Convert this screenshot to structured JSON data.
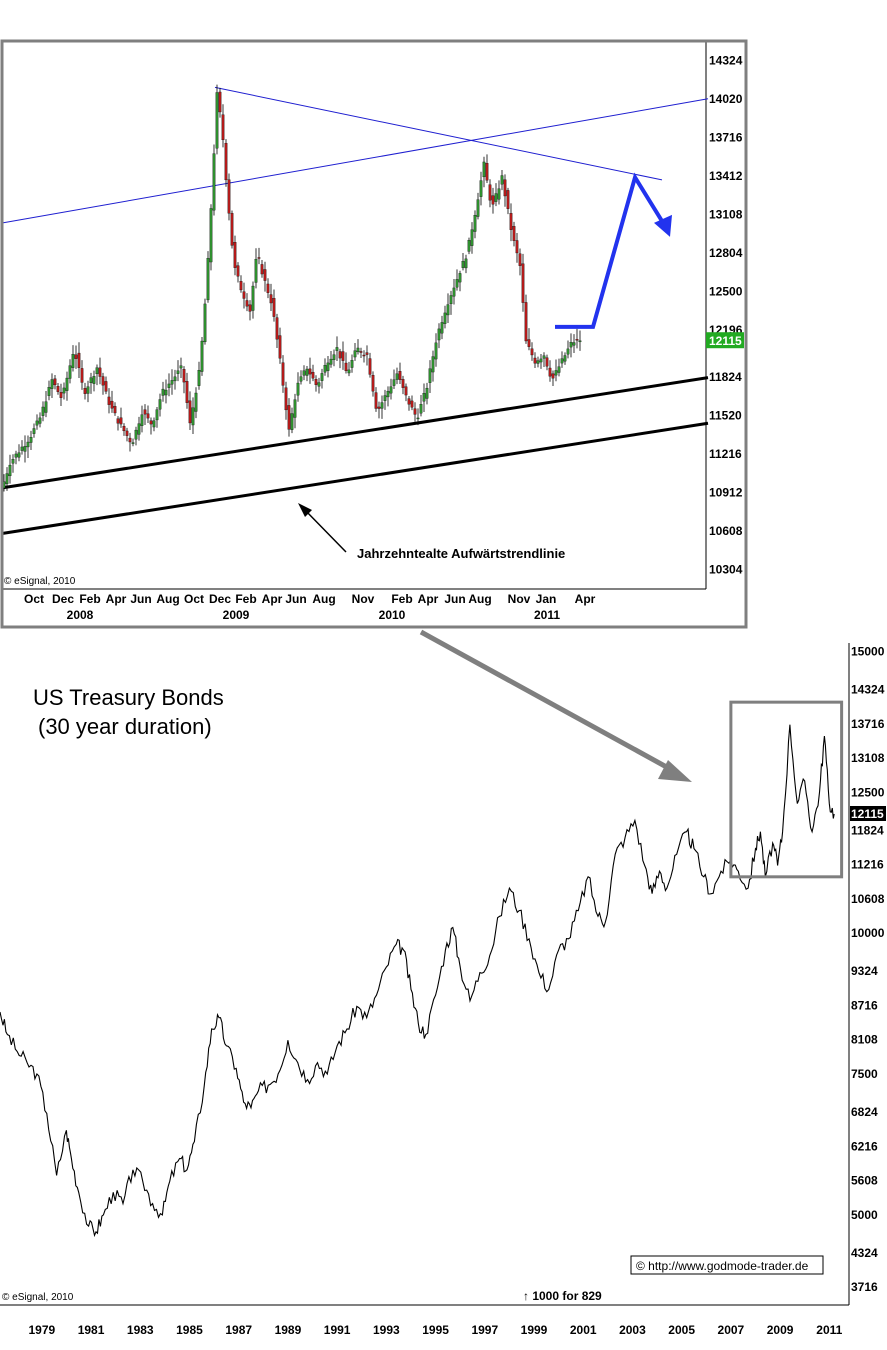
{
  "colors": {
    "frame": "#7f7f7f",
    "trend_blue": "#1f1fd0",
    "forecast_blue": "#2233ee",
    "support_black": "#000000",
    "candle_up": "#2f8f2f",
    "candle_down": "#b31b1b",
    "last_price_bg": "#22aa22",
    "arrow_gray": "#7f7f7f",
    "line": "#000000"
  },
  "chart_data": [
    {
      "type": "candlestick",
      "title": "",
      "watermark": "© eSignal, 2010",
      "annotation": "Jahrzehntealte Aufwärtstrendlinie",
      "last_price_label": "12115",
      "ylim": [
        10152,
        14476
      ],
      "y_ticks": [
        14324,
        14020,
        13716,
        13412,
        13108,
        12804,
        12500,
        12196,
        11824,
        11520,
        11216,
        10912,
        10608,
        10304
      ],
      "x_month_ticks": [
        "Oct",
        "Dec",
        "Feb",
        "Apr",
        "Jun",
        "Aug",
        "Oct",
        "Dec",
        "Feb",
        "Apr",
        "Jun",
        "Aug",
        "Nov",
        "Feb",
        "Apr",
        "Jun",
        "Aug",
        "Nov",
        "Jan",
        "Apr"
      ],
      "x_year_ticks": [
        "2008",
        "2009",
        "2010",
        "2011"
      ],
      "price_path": [
        [
          0,
          10950
        ],
        [
          8,
          11150
        ],
        [
          18,
          11250
        ],
        [
          28,
          11350
        ],
        [
          38,
          11500
        ],
        [
          50,
          11800
        ],
        [
          60,
          11650
        ],
        [
          72,
          12050
        ],
        [
          82,
          11700
        ],
        [
          95,
          11900
        ],
        [
          108,
          11600
        ],
        [
          118,
          11450
        ],
        [
          130,
          11300
        ],
        [
          140,
          11550
        ],
        [
          150,
          11450
        ],
        [
          160,
          11700
        ],
        [
          170,
          11800
        ],
        [
          180,
          11900
        ],
        [
          188,
          11450
        ],
        [
          198,
          11900
        ],
        [
          205,
          12600
        ],
        [
          210,
          13300
        ],
        [
          215,
          14050
        ],
        [
          220,
          13800
        ],
        [
          225,
          13300
        ],
        [
          232,
          12700
        ],
        [
          240,
          12500
        ],
        [
          248,
          12350
        ],
        [
          255,
          12800
        ],
        [
          262,
          12600
        ],
        [
          270,
          12400
        ],
        [
          278,
          11950
        ],
        [
          287,
          11400
        ],
        [
          295,
          11750
        ],
        [
          305,
          11900
        ],
        [
          315,
          11750
        ],
        [
          325,
          11950
        ],
        [
          335,
          12050
        ],
        [
          345,
          11850
        ],
        [
          355,
          12050
        ],
        [
          365,
          12000
        ],
        [
          375,
          11550
        ],
        [
          385,
          11700
        ],
        [
          395,
          11850
        ],
        [
          405,
          11650
        ],
        [
          415,
          11500
        ],
        [
          425,
          11750
        ],
        [
          435,
          12150
        ],
        [
          445,
          12400
        ],
        [
          455,
          12600
        ],
        [
          465,
          12800
        ],
        [
          475,
          13200
        ],
        [
          482,
          13500
        ],
        [
          490,
          13150
        ],
        [
          500,
          13400
        ],
        [
          510,
          12950
        ],
        [
          518,
          12700
        ],
        [
          524,
          12100
        ],
        [
          533,
          11950
        ],
        [
          542,
          12000
        ],
        [
          550,
          11800
        ],
        [
          560,
          11950
        ],
        [
          570,
          12100
        ],
        [
          578,
          12115
        ]
      ],
      "blue_lines": [
        {
          "from": [
            0,
            13040
          ],
          "to": [
            706,
            14020
          ]
        },
        {
          "from": [
            213,
            14110
          ],
          "to": [
            660,
            13380
          ]
        }
      ],
      "support_lines": [
        {
          "from": [
            0,
            10950
          ],
          "to": [
            706,
            11820
          ]
        },
        {
          "from": [
            0,
            10590
          ],
          "to": [
            706,
            11460
          ]
        }
      ],
      "forecast_path": [
        [
          553,
          12220
        ],
        [
          591,
          12220
        ],
        [
          633,
          13400
        ],
        [
          668,
          12930
        ]
      ]
    },
    {
      "type": "line",
      "title": "US Treasury Bonds",
      "subtitle": "(30 year duration)",
      "watermark": "© eSignal, 2010",
      "footnote": "↑ 1000 for 829",
      "credit": "© http://www.godmode-trader.de",
      "last_price_label": "12115",
      "ylim": [
        3400,
        15150
      ],
      "y_ticks": [
        15000,
        14324,
        13716,
        13108,
        12500,
        11824,
        11216,
        10608,
        10000,
        9324,
        8716,
        8108,
        7500,
        6824,
        6216,
        5608,
        5000,
        4324,
        3716
      ],
      "x_ticks": [
        "1979",
        "1981",
        "1983",
        "1985",
        "1987",
        "1989",
        "1991",
        "1993",
        "1995",
        "1997",
        "1999",
        "2001",
        "2003",
        "2005",
        "2007",
        "2009",
        "2011"
      ],
      "xlim": [
        1977.3,
        2011.8
      ],
      "series": [
        {
          "x": [
            1977.3,
            1977.6,
            1978.0,
            1978.4,
            1978.8,
            1979.2,
            1979.6,
            1980.0,
            1980.2,
            1980.5,
            1980.9,
            1981.2,
            1981.5,
            1981.9,
            1982.3,
            1982.7,
            1983.1,
            1983.5,
            1983.9,
            1984.2,
            1984.6,
            1984.9,
            1985.2,
            1985.6,
            1985.9,
            1986.2,
            1986.5,
            1986.9,
            1987.2,
            1987.5,
            1987.8,
            1988.2,
            1988.6,
            1989.0,
            1989.4,
            1989.8,
            1990.2,
            1990.6,
            1991.0,
            1991.4,
            1991.8,
            1992.2,
            1992.6,
            1993.0,
            1993.4,
            1993.7,
            1994.0,
            1994.3,
            1994.6,
            1995.0,
            1995.4,
            1995.7,
            1996.0,
            1996.4,
            1996.8,
            1997.2,
            1997.6,
            1998.0,
            1998.4,
            1998.8,
            1999.2,
            1999.6,
            2000.0,
            2000.4,
            2000.8,
            2001.2,
            2001.6,
            2001.9,
            2002.3,
            2002.7,
            2003.1,
            2003.5,
            2003.8,
            2004.1,
            2004.4,
            2004.8,
            2005.2,
            2005.5,
            2005.9,
            2006.2,
            2006.6,
            2007.0,
            2007.3,
            2007.7,
            2008.0,
            2008.2,
            2008.4,
            2008.7,
            2008.9,
            2009.1,
            2009.4,
            2009.7,
            2010.0,
            2010.3,
            2010.6,
            2010.8,
            2011.0,
            2011.2
          ],
          "y": [
            8600,
            8200,
            7900,
            7700,
            7500,
            6800,
            5700,
            6500,
            6000,
            5400,
            4800,
            4700,
            5000,
            5400,
            5200,
            5800,
            5600,
            5200,
            5000,
            5600,
            6000,
            5800,
            6300,
            7300,
            8300,
            8500,
            8000,
            7600,
            7000,
            6900,
            7200,
            7300,
            7500,
            8100,
            7700,
            7400,
            7700,
            7500,
            8000,
            8300,
            8700,
            8500,
            8900,
            9400,
            9800,
            9700,
            9000,
            8400,
            8200,
            8900,
            9700,
            10100,
            9400,
            8800,
            9300,
            9600,
            10300,
            10800,
            10400,
            9900,
            9300,
            9000,
            9700,
            9900,
            10400,
            11000,
            10300,
            10200,
            11400,
            11700,
            12000,
            11200,
            10700,
            11100,
            10800,
            11400,
            11800,
            11500,
            11000,
            10700,
            11100,
            11300,
            11100,
            10800,
            11500,
            11800,
            11000,
            11600,
            11200,
            11800,
            13700,
            12300,
            12700,
            11800,
            12500,
            13500,
            12300,
            12115
          ]
        }
      ],
      "highlight_box": {
        "x_range": [
          2007.0,
          2011.5
        ],
        "y_range": [
          11000,
          14100
        ]
      }
    }
  ]
}
